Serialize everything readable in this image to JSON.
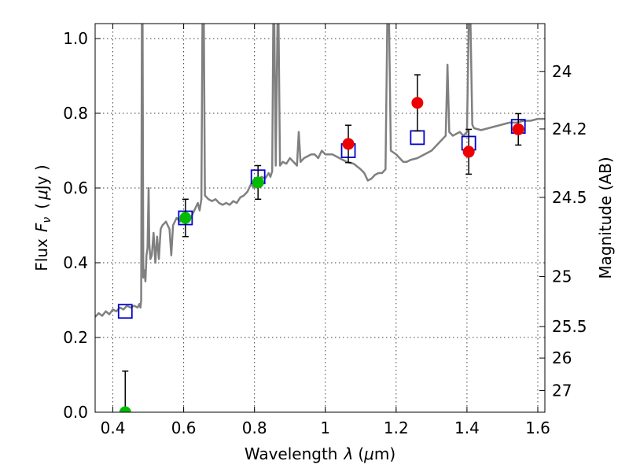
{
  "chart_data": {
    "type": "scatter",
    "xlabel_text": "Wavelength",
    "xlabel_symbol": "λ",
    "xlabel_unit_open": "(",
    "xlabel_unit_mu": "μ",
    "xlabel_unit_close": "m)",
    "ylabel_text": "Flux",
    "ylabel_symbol": "F",
    "ylabel_subscript": "ν",
    "ylabel_unit_open": "(",
    "ylabel_unit_mu": "μ",
    "ylabel_unit_close": "Jy )",
    "y2label": "Magnitude (AB)",
    "xlim": [
      0.35,
      1.62
    ],
    "ylim": [
      0.0,
      1.04
    ],
    "grid": true,
    "x_ticks": [
      {
        "value": 0.4,
        "label": "0.4"
      },
      {
        "value": 0.6,
        "label": "0.6"
      },
      {
        "value": 0.8,
        "label": "0.8"
      },
      {
        "value": 1.0,
        "label": "1"
      },
      {
        "value": 1.2,
        "label": "1.2"
      },
      {
        "value": 1.4,
        "label": "1.4"
      },
      {
        "value": 1.6,
        "label": "1.6"
      }
    ],
    "y_ticks": [
      {
        "value": 0.0,
        "label": "0.0"
      },
      {
        "value": 0.2,
        "label": "0.2"
      },
      {
        "value": 0.4,
        "label": "0.4"
      },
      {
        "value": 0.6,
        "label": "0.6"
      },
      {
        "value": 0.8,
        "label": "0.8"
      },
      {
        "value": 1.0,
        "label": "1.0"
      }
    ],
    "y2_ticks": [
      {
        "flux": 0.912,
        "label": "24"
      },
      {
        "flux": 0.758,
        "label": "24.2"
      },
      {
        "flux": 0.575,
        "label": "24.5"
      },
      {
        "flux": 0.363,
        "label": "25"
      },
      {
        "flux": 0.229,
        "label": "25.5"
      },
      {
        "flux": 0.145,
        "label": "26"
      },
      {
        "flux": 0.058,
        "label": "27"
      }
    ],
    "colors": {
      "model": "#808080",
      "model_photometry": "#0000cc",
      "photometry_green": "#00bb00",
      "photometry_red": "#ee0000",
      "errorbar": "#000000"
    },
    "series": [
      {
        "kind": "line",
        "color": "#808080",
        "points": [
          [
            0.35,
            0.255
          ],
          [
            0.36,
            0.265
          ],
          [
            0.37,
            0.258
          ],
          [
            0.38,
            0.27
          ],
          [
            0.39,
            0.262
          ],
          [
            0.4,
            0.275
          ],
          [
            0.41,
            0.27
          ],
          [
            0.42,
            0.28
          ],
          [
            0.43,
            0.275
          ],
          [
            0.44,
            0.285
          ],
          [
            0.45,
            0.28
          ],
          [
            0.46,
            0.285
          ],
          [
            0.47,
            0.28
          ],
          [
            0.475,
            0.29
          ],
          [
            0.478,
            0.28
          ],
          [
            0.48,
            0.3
          ],
          [
            0.482,
            1.04
          ],
          [
            0.484,
            1.04
          ],
          [
            0.486,
            0.36
          ],
          [
            0.489,
            0.38
          ],
          [
            0.492,
            0.35
          ],
          [
            0.495,
            0.42
          ],
          [
            0.498,
            0.44
          ],
          [
            0.501,
            0.6
          ],
          [
            0.503,
            0.45
          ],
          [
            0.506,
            0.41
          ],
          [
            0.51,
            0.42
          ],
          [
            0.515,
            0.48
          ],
          [
            0.52,
            0.4
          ],
          [
            0.525,
            0.47
          ],
          [
            0.53,
            0.41
          ],
          [
            0.535,
            0.49
          ],
          [
            0.54,
            0.5
          ],
          [
            0.55,
            0.51
          ],
          [
            0.56,
            0.49
          ],
          [
            0.565,
            0.42
          ],
          [
            0.57,
            0.5
          ],
          [
            0.58,
            0.52
          ],
          [
            0.59,
            0.51
          ],
          [
            0.6,
            0.52
          ],
          [
            0.61,
            0.53
          ],
          [
            0.62,
            0.52
          ],
          [
            0.63,
            0.54
          ],
          [
            0.64,
            0.56
          ],
          [
            0.645,
            0.54
          ],
          [
            0.65,
            0.57
          ],
          [
            0.653,
            1.04
          ],
          [
            0.657,
            1.04
          ],
          [
            0.66,
            0.58
          ],
          [
            0.67,
            0.57
          ],
          [
            0.68,
            0.565
          ],
          [
            0.69,
            0.57
          ],
          [
            0.7,
            0.56
          ],
          [
            0.71,
            0.555
          ],
          [
            0.72,
            0.56
          ],
          [
            0.73,
            0.555
          ],
          [
            0.74,
            0.565
          ],
          [
            0.75,
            0.56
          ],
          [
            0.76,
            0.575
          ],
          [
            0.77,
            0.58
          ],
          [
            0.78,
            0.59
          ],
          [
            0.79,
            0.61
          ],
          [
            0.8,
            0.6
          ],
          [
            0.81,
            0.62
          ],
          [
            0.82,
            0.63
          ],
          [
            0.83,
            0.625
          ],
          [
            0.84,
            0.64
          ],
          [
            0.845,
            0.63
          ],
          [
            0.85,
            0.645
          ],
          [
            0.853,
            1.04
          ],
          [
            0.856,
            1.04
          ],
          [
            0.86,
            0.66
          ],
          [
            0.865,
            1.04
          ],
          [
            0.868,
            1.04
          ],
          [
            0.872,
            0.66
          ],
          [
            0.88,
            0.67
          ],
          [
            0.89,
            0.665
          ],
          [
            0.9,
            0.68
          ],
          [
            0.91,
            0.67
          ],
          [
            0.92,
            0.66
          ],
          [
            0.925,
            0.75
          ],
          [
            0.93,
            0.67
          ],
          [
            0.94,
            0.68
          ],
          [
            0.95,
            0.685
          ],
          [
            0.96,
            0.69
          ],
          [
            0.97,
            0.69
          ],
          [
            0.98,
            0.68
          ],
          [
            0.99,
            0.7
          ],
          [
            1.0,
            0.69
          ],
          [
            1.02,
            0.69
          ],
          [
            1.04,
            0.68
          ],
          [
            1.06,
            0.67
          ],
          [
            1.08,
            0.665
          ],
          [
            1.1,
            0.65
          ],
          [
            1.11,
            0.64
          ],
          [
            1.12,
            0.62
          ],
          [
            1.13,
            0.625
          ],
          [
            1.14,
            0.635
          ],
          [
            1.15,
            0.64
          ],
          [
            1.16,
            0.64
          ],
          [
            1.17,
            0.65
          ],
          [
            1.175,
            1.04
          ],
          [
            1.18,
            1.04
          ],
          [
            1.185,
            0.7
          ],
          [
            1.2,
            0.69
          ],
          [
            1.21,
            0.68
          ],
          [
            1.22,
            0.67
          ],
          [
            1.23,
            0.67
          ],
          [
            1.24,
            0.675
          ],
          [
            1.26,
            0.68
          ],
          [
            1.28,
            0.69
          ],
          [
            1.3,
            0.7
          ],
          [
            1.32,
            0.72
          ],
          [
            1.34,
            0.74
          ],
          [
            1.345,
            0.93
          ],
          [
            1.35,
            0.75
          ],
          [
            1.36,
            0.74
          ],
          [
            1.37,
            0.745
          ],
          [
            1.38,
            0.75
          ],
          [
            1.39,
            0.74
          ],
          [
            1.4,
            0.75
          ],
          [
            1.405,
            1.04
          ],
          [
            1.41,
            1.04
          ],
          [
            1.415,
            0.77
          ],
          [
            1.42,
            0.76
          ],
          [
            1.44,
            0.755
          ],
          [
            1.46,
            0.76
          ],
          [
            1.48,
            0.765
          ],
          [
            1.5,
            0.77
          ],
          [
            1.52,
            0.775
          ],
          [
            1.54,
            0.775
          ],
          [
            1.56,
            0.78
          ],
          [
            1.58,
            0.78
          ],
          [
            1.6,
            0.785
          ],
          [
            1.62,
            0.785
          ]
        ]
      },
      {
        "kind": "model_photometry",
        "marker": "open-square",
        "color": "#0000cc",
        "points": [
          [
            0.435,
            0.27
          ],
          [
            0.605,
            0.52
          ],
          [
            0.81,
            0.63
          ],
          [
            1.065,
            0.7
          ],
          [
            1.26,
            0.735
          ],
          [
            1.405,
            0.72
          ],
          [
            1.545,
            0.765
          ]
        ]
      },
      {
        "kind": "photometry",
        "marker": "filled-circle",
        "color": "#00bb00",
        "points": [
          {
            "x": 0.435,
            "y": 0.0,
            "err_lo": 0.0,
            "err_hi": 0.11
          },
          {
            "x": 0.605,
            "y": 0.52,
            "err_lo": 0.05,
            "err_hi": 0.05
          },
          {
            "x": 0.81,
            "y": 0.615,
            "err_lo": 0.045,
            "err_hi": 0.045
          }
        ]
      },
      {
        "kind": "photometry",
        "marker": "filled-circle",
        "color": "#ee0000",
        "points": [
          {
            "x": 1.065,
            "y": 0.718,
            "err_lo": 0.05,
            "err_hi": 0.05
          },
          {
            "x": 1.26,
            "y": 0.828,
            "err_lo": 0.075,
            "err_hi": 0.075
          },
          {
            "x": 1.405,
            "y": 0.697,
            "err_lo": 0.06,
            "err_hi": 0.06
          },
          {
            "x": 1.545,
            "y": 0.757,
            "err_lo": 0.042,
            "err_hi": 0.042
          }
        ]
      }
    ]
  }
}
